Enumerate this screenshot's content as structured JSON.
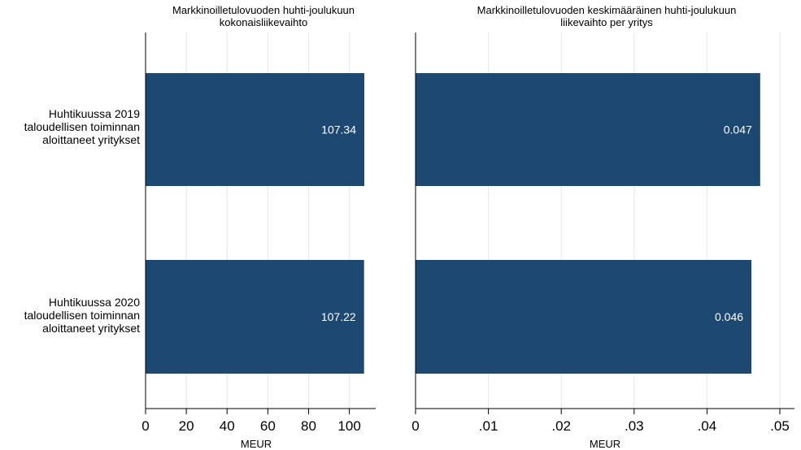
{
  "chart_data": [
    {
      "type": "bar",
      "orientation": "horizontal",
      "title": "Markkinoilletulovuoden huhti-joulukuun kokonaisliikevaihto",
      "title_lines": [
        "Markkinoilletulovuoden huhti-joulukuun",
        "kokonaisliikevaihto"
      ],
      "xlabel": "MEUR",
      "ylabel": "",
      "categories": [
        "Huhtikuussa 2019 taloudellisen toiminnan aloittaneet yritykset",
        "Huhtikuussa 2020 taloudellisen toiminnan aloittaneet yritykset"
      ],
      "values": [
        107.34,
        107.22
      ],
      "value_labels": [
        "107.34",
        "107.22"
      ],
      "xlim": [
        0,
        110
      ],
      "xticks": [
        0,
        20,
        40,
        60,
        80,
        100
      ],
      "xtick_labels": [
        "0",
        "20",
        "40",
        "60",
        "80",
        "100"
      ],
      "grid": true
    },
    {
      "type": "bar",
      "orientation": "horizontal",
      "title": "Markkinoilletulovuoden keskimääräinen huhti-joulukuun liikevaihto per yritys",
      "title_lines": [
        "Markkinoilletulovuoden keskimääräinen huhti-joulukuun",
        "liikevaihto per yritys"
      ],
      "xlabel": "MEUR",
      "ylabel": "",
      "categories": [
        "Huhtikuussa 2019 taloudellisen toiminnan aloittaneet yritykset",
        "Huhtikuussa 2020 taloudellisen toiminnan aloittaneet yritykset"
      ],
      "values": [
        0.0473,
        0.0461
      ],
      "value_labels": [
        "0.047",
        "0.046"
      ],
      "xlim": [
        0,
        0.05
      ],
      "xticks": [
        0,
        0.01,
        0.02,
        0.03,
        0.04,
        0.05
      ],
      "xtick_labels": [
        "0",
        ".01",
        ".02",
        ".03",
        ".04",
        ".05"
      ],
      "grid": true
    }
  ],
  "category_labels": [
    [
      "Huhtikuussa 2019",
      "taloudellisen toiminnan",
      "aloittaneet yritykset"
    ],
    [
      "Huhtikuussa 2020",
      "taloudellisen toiminnan",
      "aloittaneet yritykset"
    ]
  ],
  "colors": {
    "bar": "#1d4871",
    "grid": "#e6e6e6",
    "axis": "#000000",
    "bar_label": "#ffffff"
  }
}
